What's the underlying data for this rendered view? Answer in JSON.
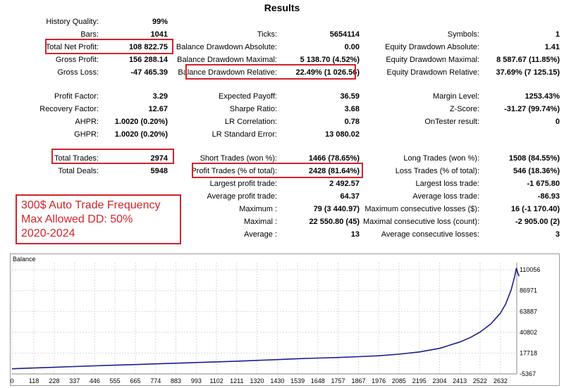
{
  "title": "Results",
  "stats": {
    "col1": [
      {
        "label": "History Quality:",
        "value": "99%"
      },
      {
        "label": "Bars:",
        "value": "1041"
      },
      {
        "label": "Total Net Profit:",
        "value": "108 822.75"
      },
      {
        "label": "Gross Profit:",
        "value": "156 288.14"
      },
      {
        "label": "Gross Loss:",
        "value": "-47 465.39"
      },
      {
        "label": "Profit Factor:",
        "value": "3.29"
      },
      {
        "label": "Recovery Factor:",
        "value": "12.67"
      },
      {
        "label": "AHPR:",
        "value": "1.0020 (0.20%)"
      },
      {
        "label": "GHPR:",
        "value": "1.0020 (0.20%)"
      },
      {
        "label": "Total Trades:",
        "value": "2974"
      },
      {
        "label": "Total Deals:",
        "value": "5948"
      }
    ],
    "col2": [
      {
        "label": "Ticks:",
        "value": "5654114"
      },
      {
        "label": "Balance Drawdown Absolute:",
        "value": "0.00"
      },
      {
        "label": "Balance Drawdown Maximal:",
        "value": "5 138.70 (4.52%)"
      },
      {
        "label": "Balance Drawdown Relative:",
        "value": "22.49% (1 026.56)"
      },
      {
        "label": "Expected Payoff:",
        "value": "36.59"
      },
      {
        "label": "Sharpe Ratio:",
        "value": "3.68"
      },
      {
        "label": "LR Correlation:",
        "value": "0.78"
      },
      {
        "label": "LR Standard Error:",
        "value": "13 080.02"
      },
      {
        "label": "Short Trades (won %):",
        "value": "1466 (78.65%)"
      },
      {
        "label": "Profit Trades (% of total):",
        "value": "2428 (81.64%)"
      },
      {
        "label": "Largest profit trade:",
        "value": "2 492.57"
      },
      {
        "label": "Average profit trade:",
        "value": "64.37"
      },
      {
        "label": "Maximum :",
        "value": "79 (3 440.97)"
      },
      {
        "label": "Maximal :",
        "value": "22 550.80 (45)"
      },
      {
        "label": "Average :",
        "value": "13"
      }
    ],
    "col3": [
      {
        "label": "Symbols:",
        "value": "1"
      },
      {
        "label": "Equity Drawdown Absolute:",
        "value": "1.41"
      },
      {
        "label": "Equity Drawdown Maximal:",
        "value": "8 587.67 (11.85%)"
      },
      {
        "label": "Equity Drawdown Relative:",
        "value": "37.69% (7 125.15)"
      },
      {
        "label": "Margin Level:",
        "value": "1253.43%"
      },
      {
        "label": "Z-Score:",
        "value": "-31.27 (99.74%)"
      },
      {
        "label": "OnTester result:",
        "value": "0"
      },
      {
        "label": "Long Trades (won %):",
        "value": "1508 (84.55%)"
      },
      {
        "label": "Loss Trades (% of total):",
        "value": "546 (18.36%)"
      },
      {
        "label": "Largest loss trade:",
        "value": "-1 675.80"
      },
      {
        "label": "Average loss trade:",
        "value": "-86.93"
      },
      {
        "label": "Maximum consecutive losses ($):",
        "value": "16 (-1 170.40)"
      },
      {
        "label": "Maximal consecutive loss (count):",
        "value": "-2 905.00 (2)"
      },
      {
        "label": "Average consecutive losses:",
        "value": "3"
      }
    ]
  },
  "note": {
    "line1": "300$ Auto Trade Frequency",
    "line2": "Max Allowed DD: 50%",
    "line3": "2020-2024"
  },
  "colors": {
    "highlight": "#d2232a",
    "balance_line": "#1b1f8a",
    "grid": "#d8d8d8"
  },
  "chart_data": {
    "type": "line",
    "title": "Balance",
    "x_ticks": [
      "0",
      "118",
      "228",
      "337",
      "446",
      "555",
      "665",
      "774",
      "883",
      "993",
      "1102",
      "1211",
      "1320",
      "1430",
      "1539",
      "1648",
      "1757",
      "1867",
      "1976",
      "2085",
      "2195",
      "2304",
      "2413",
      "2522",
      "2632"
    ],
    "y_ticks": [
      "110056",
      "86971",
      "63887",
      "40802",
      "17718",
      "-5367"
    ],
    "ylim": [
      -5367,
      118000
    ],
    "xlim": [
      0,
      2720
    ],
    "series": [
      {
        "values": [
          [
            0,
            300
          ],
          [
            118,
            1200
          ],
          [
            228,
            2000
          ],
          [
            337,
            2800
          ],
          [
            446,
            3600
          ],
          [
            555,
            4300
          ],
          [
            665,
            5000
          ],
          [
            774,
            5800
          ],
          [
            883,
            6500
          ],
          [
            993,
            7300
          ],
          [
            1102,
            8000
          ],
          [
            1211,
            8800
          ],
          [
            1320,
            9600
          ],
          [
            1430,
            10500
          ],
          [
            1539,
            11500
          ],
          [
            1648,
            12200
          ],
          [
            1757,
            12800
          ],
          [
            1867,
            13800
          ],
          [
            1976,
            14800
          ],
          [
            2085,
            16500
          ],
          [
            2195,
            19000
          ],
          [
            2304,
            23000
          ],
          [
            2413,
            30000
          ],
          [
            2470,
            35000
          ],
          [
            2522,
            41000
          ],
          [
            2580,
            50000
          ],
          [
            2632,
            62000
          ],
          [
            2660,
            72000
          ],
          [
            2690,
            88000
          ],
          [
            2708,
            102000
          ],
          [
            2718,
            112000
          ],
          [
            2725,
            107000
          ],
          [
            2732,
            103000
          ]
        ]
      }
    ]
  }
}
